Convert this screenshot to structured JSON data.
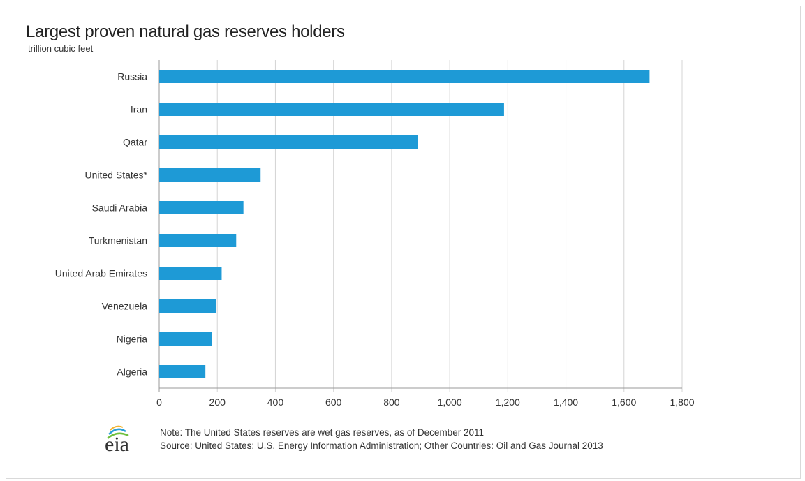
{
  "chart_data": {
    "type": "bar",
    "orientation": "horizontal",
    "title": "Largest proven natural gas reserves holders",
    "unit": "trillion cubic feet",
    "categories": [
      "Russia",
      "Iran",
      "Qatar",
      "United States*",
      "Saudi Arabia",
      "Turkmenistan",
      "United Arab Emirates",
      "Venezuela",
      "Nigeria",
      "Algeria"
    ],
    "values": [
      1688,
      1187,
      890,
      349,
      290,
      265,
      215,
      195,
      182,
      159
    ],
    "xlim": [
      0,
      1800
    ],
    "xticks": [
      "0",
      "200",
      "400",
      "600",
      "800",
      "1,000",
      "1,200",
      "1,400",
      "1,600",
      "1,800"
    ],
    "grid": "vertical",
    "bar_color": "#1e9ad6"
  },
  "footer": {
    "note": "Note: The United States reserves are wet gas reserves, as of December 2011",
    "source": "Source: United States: U.S. Energy Information Administration; Other Countries: Oil and Gas Journal 2013",
    "logo_text": "eia"
  }
}
